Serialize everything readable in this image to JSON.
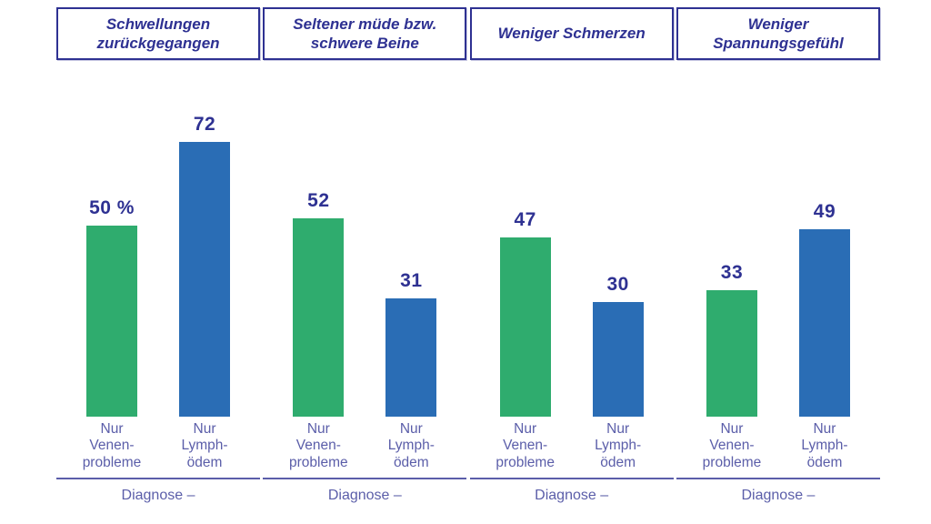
{
  "colors": {
    "green": "#2FAC6E",
    "blue": "#2A6DB5",
    "indigo": "#2E3192",
    "purple": "#5B5EA9",
    "bg": "#FFFFFF"
  },
  "chart_data": [
    {
      "type": "bar",
      "title": "Schwellungen zurückgegangen",
      "categories": [
        "Nur Venenprobleme",
        "Nur Lymphödem"
      ],
      "categories_display": [
        "Nur\nVenen-\nprobleme",
        "Nur\nLymph-\nödem"
      ],
      "values": [
        50,
        72
      ],
      "value_labels": [
        "50 %",
        "72"
      ],
      "series_colors": [
        "#2FAC6E",
        "#2A6DB5"
      ],
      "xlabel": "Diagnose –",
      "ylabel": "",
      "ylim": [
        0,
        80
      ],
      "grid": false,
      "legend": false
    },
    {
      "type": "bar",
      "title": "Seltener müde bzw. schwere Beine",
      "categories": [
        "Nur Venenprobleme",
        "Nur Lymphödem"
      ],
      "categories_display": [
        "Nur\nVenen-\nprobleme",
        "Nur\nLymph-\nödem"
      ],
      "values": [
        52,
        31
      ],
      "value_labels": [
        "52",
        "31"
      ],
      "series_colors": [
        "#2FAC6E",
        "#2A6DB5"
      ],
      "xlabel": "Diagnose –",
      "ylabel": "",
      "ylim": [
        0,
        80
      ],
      "grid": false,
      "legend": false
    },
    {
      "type": "bar",
      "title": "Weniger Schmerzen",
      "categories": [
        "Nur Venenprobleme",
        "Nur Lymphödem"
      ],
      "categories_display": [
        "Nur\nVenen-\nprobleme",
        "Nur\nLymph-\nödem"
      ],
      "values": [
        47,
        30
      ],
      "value_labels": [
        "47",
        "30"
      ],
      "series_colors": [
        "#2FAC6E",
        "#2A6DB5"
      ],
      "xlabel": "Diagnose –",
      "ylabel": "",
      "ylim": [
        0,
        80
      ],
      "grid": false,
      "legend": false
    },
    {
      "type": "bar",
      "title": "Weniger Spannungsgefühl",
      "categories": [
        "Nur Venenprobleme",
        "Nur Lymphödem"
      ],
      "categories_display": [
        "Nur\nVenen-\nprobleme",
        "Nur\nLymph-\nödem"
      ],
      "values": [
        33,
        49
      ],
      "value_labels": [
        "33",
        "49"
      ],
      "series_colors": [
        "#2FAC6E",
        "#2A6DB5"
      ],
      "xlabel": "Diagnose –",
      "ylabel": "",
      "ylim": [
        0,
        80
      ],
      "grid": false,
      "legend": false
    }
  ]
}
